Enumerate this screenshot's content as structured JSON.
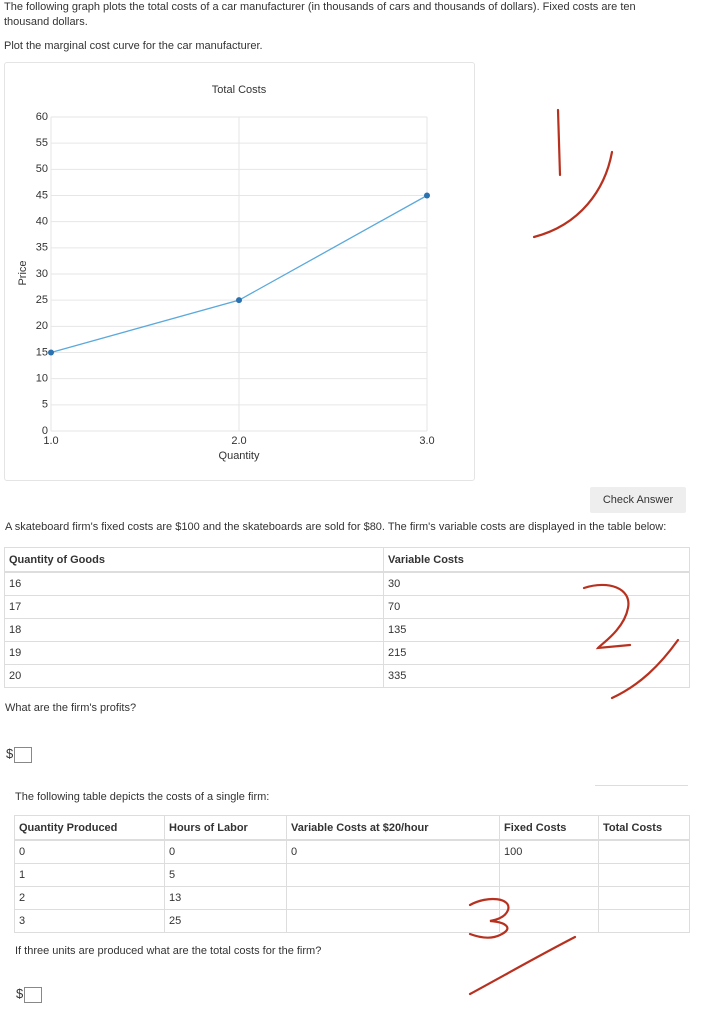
{
  "question1": {
    "text": "The following graph plots the total costs of a car manufacturer (in thousands of cars and thousands of dollars). Fixed costs are ten thousand dollars.",
    "prompt": "Plot the marginal cost curve for the car manufacturer."
  },
  "chart_data": {
    "type": "line",
    "title": "Total Costs",
    "x_label": "Quantity",
    "y_label": "Price",
    "x": [
      1,
      2,
      3
    ],
    "series": [
      {
        "name": "Total Costs",
        "color": "#5aa9dc",
        "values": [
          15,
          25,
          45
        ]
      }
    ],
    "xlim": [
      1,
      3
    ],
    "ylim": [
      0,
      60
    ],
    "xticks": [
      {
        "value": 1,
        "label": "1.0"
      },
      {
        "value": 2,
        "label": "2.0"
      },
      {
        "value": 3,
        "label": "3.0"
      }
    ],
    "yticks": [
      0,
      5,
      10,
      15,
      20,
      25,
      30,
      35,
      40,
      45,
      50,
      55,
      60
    ],
    "grid": true
  },
  "check_answer": "Check Answer",
  "question2": {
    "text": "A skateboard firm's fixed costs are $100 and the skateboards are sold for $80. The firm's variable costs are displayed in the table below:",
    "table": {
      "columns": [
        "Quantity of Goods",
        "Variable Costs"
      ],
      "rows": [
        [
          16,
          30
        ],
        [
          17,
          70
        ],
        [
          18,
          135
        ],
        [
          19,
          215
        ],
        [
          20,
          335
        ]
      ]
    },
    "prompt": "What are the firm's profits?",
    "currency": "$"
  },
  "question3": {
    "text": "The following table depicts the costs of a single firm:",
    "table": {
      "columns": [
        "Quantity Produced",
        "Hours of Labor",
        "Variable Costs at $20/hour",
        "Fixed Costs",
        "Total Costs"
      ],
      "rows": [
        [
          0,
          0,
          0,
          100,
          null
        ],
        [
          1,
          5,
          null,
          null,
          null
        ],
        [
          2,
          13,
          null,
          null,
          null
        ],
        [
          3,
          25,
          null,
          null,
          null
        ]
      ]
    },
    "prompt": "If three units are produced what are the total costs for the firm?",
    "currency": "$"
  }
}
